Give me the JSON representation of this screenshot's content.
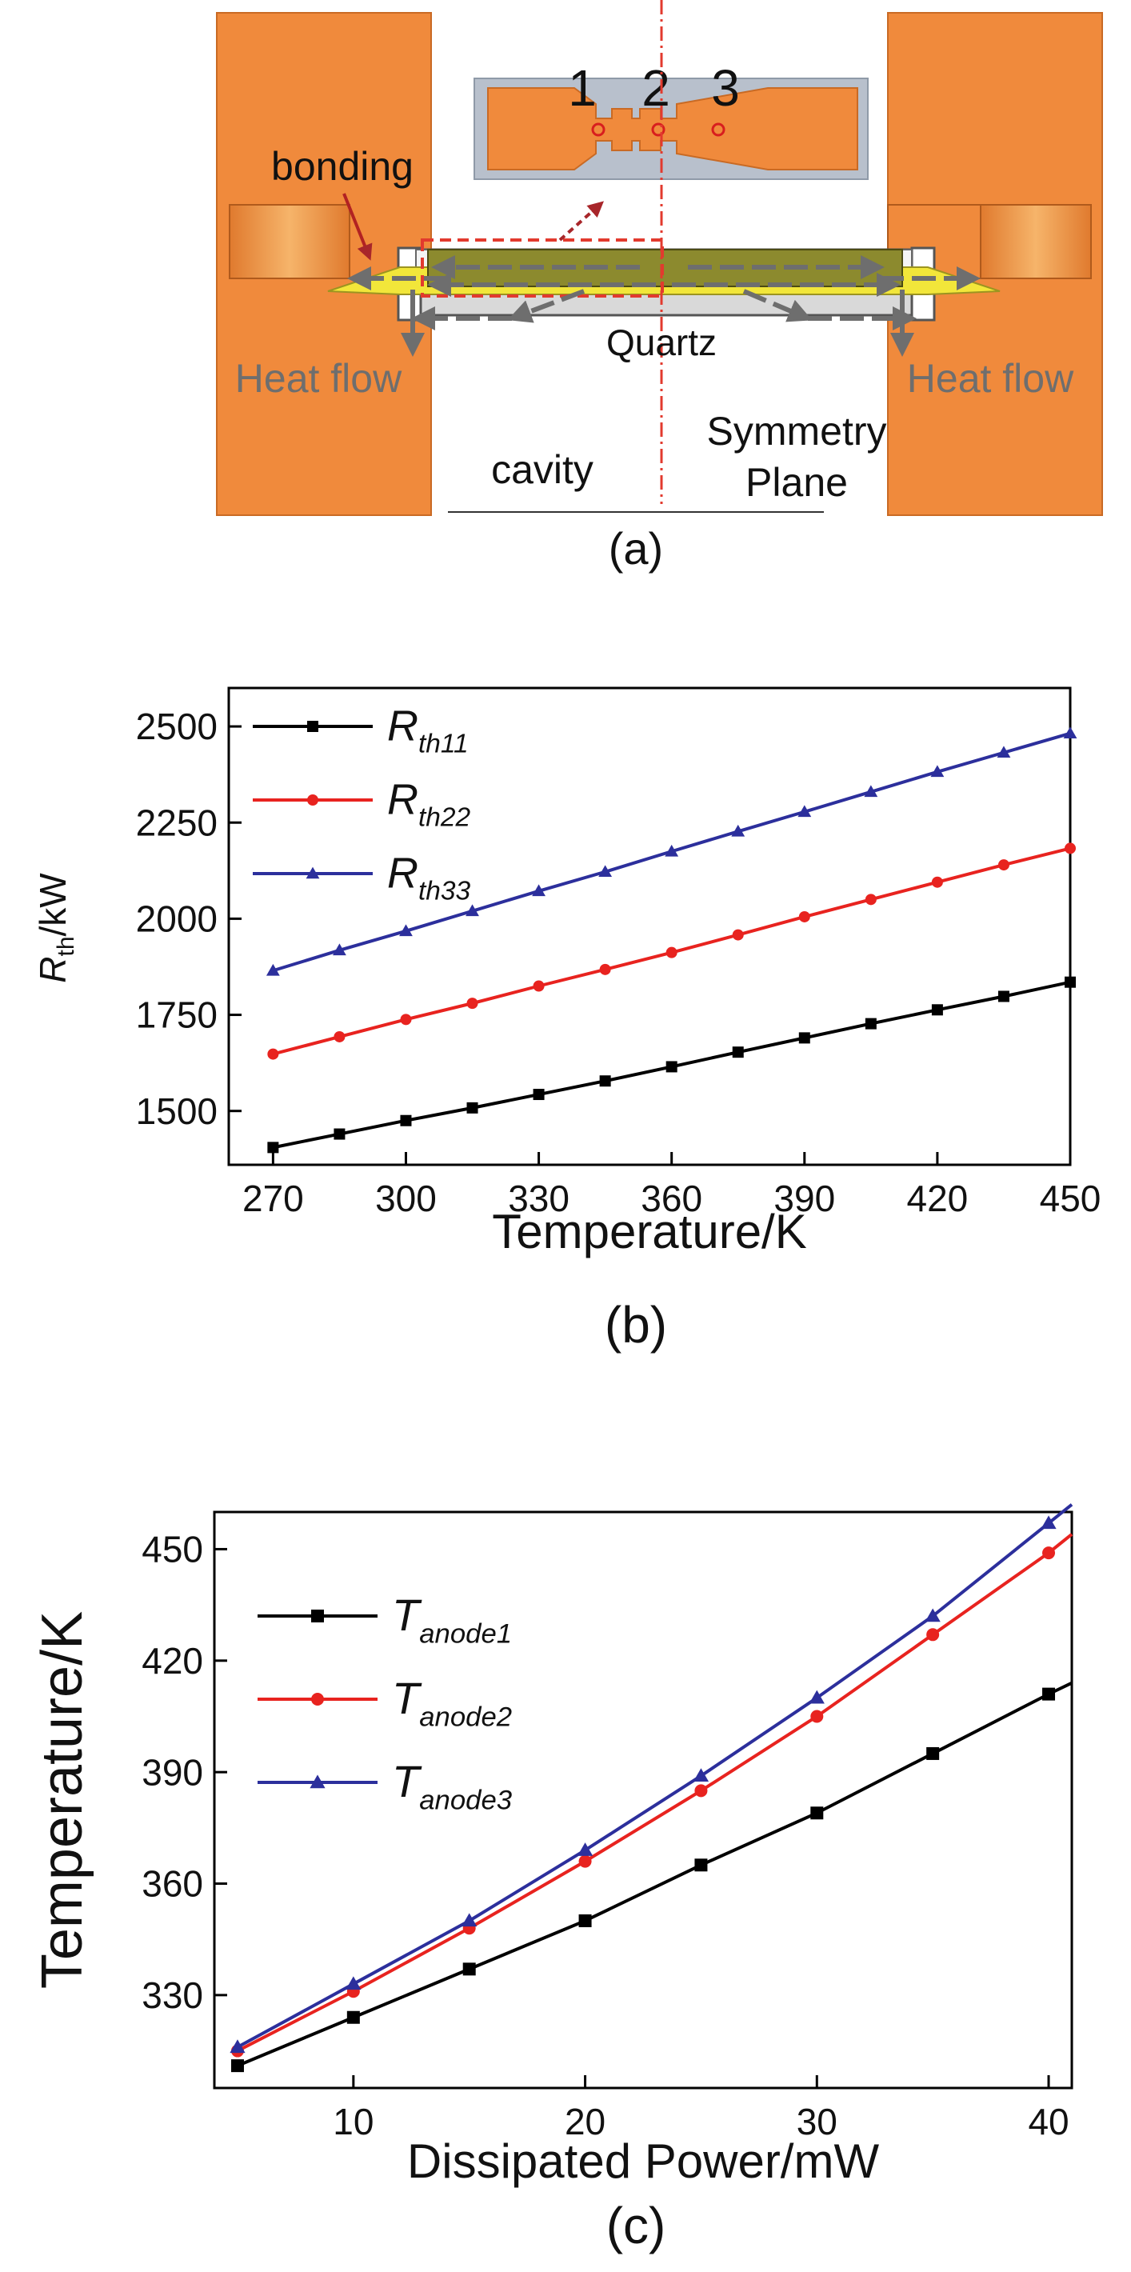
{
  "panel_a": {
    "labels": {
      "n1": "1",
      "n2": "2",
      "n3": "3",
      "bonding": "bonding",
      "quartz": "Quartz",
      "heat_left": "Heat flow",
      "heat_right": "Heat flow",
      "cavity": "cavity",
      "sym1": "Symmetry",
      "sym2": "Plane"
    },
    "caption": "(a)",
    "colors": {
      "copper": "#F08A3C",
      "quartz": "#B8B8B8",
      "bond": "#F2E63A",
      "die": "#8C8A2E",
      "gray": "#6E6E6E",
      "red": "#E23A2E"
    }
  },
  "chart_data": [
    {
      "id": "b",
      "type": "line",
      "caption": "(b)",
      "xlabel": "Temperature/K",
      "ylabel_main": "R",
      "ylabel_sub": "th",
      "ylabel_rest": "/kW",
      "xlim": [
        260,
        450
      ],
      "ylim": [
        1360,
        2600
      ],
      "xticks": [
        270,
        300,
        330,
        360,
        390,
        420,
        450
      ],
      "yticks": [
        1500,
        1750,
        2000,
        2250,
        2500
      ],
      "x": [
        270,
        285,
        300,
        315,
        330,
        345,
        360,
        375,
        390,
        405,
        420,
        435,
        450
      ],
      "series": [
        {
          "name": "R",
          "sub": "th11",
          "color": "#000000",
          "marker": "square",
          "values": [
            1405,
            1440,
            1475,
            1508,
            1543,
            1578,
            1615,
            1653,
            1690,
            1727,
            1763,
            1798,
            1835
          ]
        },
        {
          "name": "R",
          "sub": "th22",
          "color": "#E8231F",
          "marker": "dot",
          "values": [
            1648,
            1693,
            1738,
            1780,
            1825,
            1868,
            1912,
            1958,
            2005,
            2050,
            2095,
            2140,
            2183
          ]
        },
        {
          "name": "R",
          "sub": "th33",
          "color": "#2C2F9C",
          "marker": "triangle",
          "values": [
            1865,
            1918,
            1968,
            2020,
            2072,
            2122,
            2175,
            2227,
            2278,
            2330,
            2382,
            2432,
            2482
          ]
        }
      ]
    },
    {
      "id": "c",
      "type": "line",
      "caption": "(c)",
      "xlabel": "Dissipated Power/mW",
      "ylabel": "Temperature/K",
      "xlim": [
        4,
        41
      ],
      "ylim": [
        305,
        460
      ],
      "xticks": [
        10,
        20,
        30,
        40
      ],
      "yticks": [
        330,
        360,
        390,
        420,
        450
      ],
      "x": [
        5,
        10,
        15,
        20,
        25,
        30,
        35,
        40,
        41
      ],
      "series": [
        {
          "name": "T",
          "sub": "anode1",
          "color": "#000000",
          "marker": "square",
          "nmarkers": 8,
          "values": [
            311,
            324,
            337,
            350,
            365,
            379,
            395,
            411,
            414
          ]
        },
        {
          "name": "T",
          "sub": "anode2",
          "color": "#E8231F",
          "marker": "dot",
          "nmarkers": 8,
          "values": [
            315,
            331,
            348,
            366,
            385,
            405,
            427,
            449,
            454
          ]
        },
        {
          "name": "T",
          "sub": "anode3",
          "color": "#2C2F9C",
          "marker": "triangle",
          "nmarkers": 8,
          "values": [
            316,
            333,
            350,
            369,
            389,
            410,
            432,
            457,
            462
          ]
        }
      ]
    }
  ]
}
